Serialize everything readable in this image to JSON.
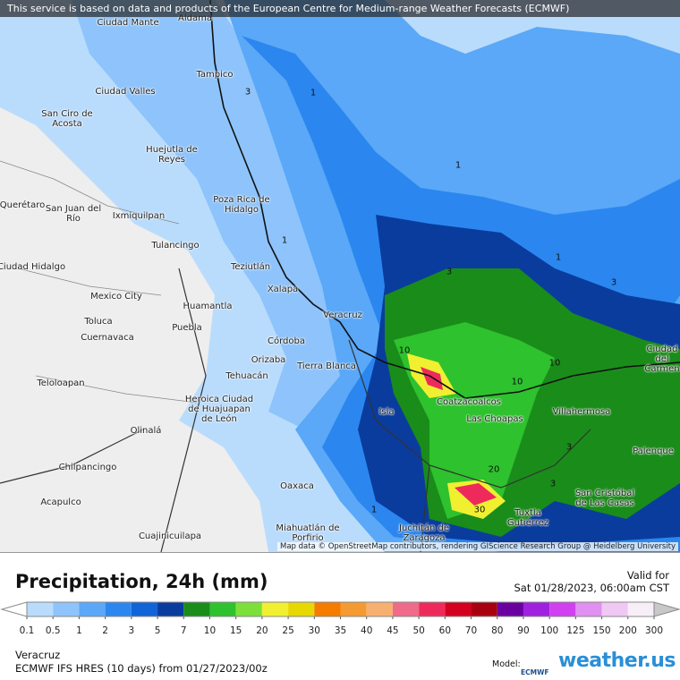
{
  "header": {
    "notice": "This service is based on data and products of the European Centre for Medium-range Weather Forecasts (ECMWF)"
  },
  "map": {
    "places": [
      "Ciudad Mante",
      "Aldama",
      "Tampico",
      "Ciudad Valles",
      "San Ciro de Acosta",
      "Huejutla de Reyes",
      "Poza Rica de Hidalgo",
      "Querétaro",
      "San Juan del Río",
      "Ixmiquilpan",
      "Tulancingo",
      "Ciudad Hidalgo",
      "Teziutlán",
      "Xalapa",
      "Mexico City",
      "Huamantla",
      "Toluca",
      "Puebla",
      "Cuernavaca",
      "Veracruz",
      "Córdoba",
      "Orizaba",
      "Tierra Blanca",
      "Tehuacán",
      "Teloloapan",
      "Heroica Ciudad de Huajuapan de León",
      "Coatzacoalcos",
      "Las Choapas",
      "Villahermosa",
      "Ciudad del Carmen",
      "Isla",
      "Olinalá",
      "Chilpancingo",
      "Palenque",
      "Oaxaca",
      "San Cristóbal de Las Casas",
      "Acapulco",
      "Tuxtla Gutiérrez",
      "Juchitán de Zaragoza",
      "Miahuatlán de Porfirio",
      "Cuajinicuilapa"
    ],
    "contour_labels": [
      1,
      3,
      1,
      3,
      3,
      1,
      10,
      10,
      10,
      20,
      30,
      1,
      3,
      3,
      1
    ],
    "attribution": "Map data © OpenStreetMap contributors, rendering GIScience Research Group @ Heidelberg University"
  },
  "legend": {
    "title": "Precipitation, 24h (mm)",
    "valid_label": "Valid for",
    "valid_time": "Sat 01/28/2023, 06:00am CST",
    "stops": [
      {
        "value": 0.1,
        "color": "#b9dcfd"
      },
      {
        "value": 0.5,
        "color": "#8ec4fb"
      },
      {
        "value": 1,
        "color": "#5aa8f7"
      },
      {
        "value": 2,
        "color": "#2b87ef"
      },
      {
        "value": 3,
        "color": "#1064d8"
      },
      {
        "value": 5,
        "color": "#0a3c9e"
      },
      {
        "value": 7,
        "color": "#1a8c1a"
      },
      {
        "value": 10,
        "color": "#2ec22e"
      },
      {
        "value": 15,
        "color": "#7de03a"
      },
      {
        "value": 20,
        "color": "#f0f030"
      },
      {
        "value": 25,
        "color": "#e6d800"
      },
      {
        "value": 30,
        "color": "#f57c00"
      },
      {
        "value": 35,
        "color": "#f59a30"
      },
      {
        "value": 40,
        "color": "#f8b070"
      },
      {
        "value": 45,
        "color": "#f06a8a"
      },
      {
        "value": 50,
        "color": "#ee2a5c"
      },
      {
        "value": 60,
        "color": "#d40020"
      },
      {
        "value": 70,
        "color": "#a8000f"
      },
      {
        "value": 80,
        "color": "#6a00a0"
      },
      {
        "value": 90,
        "color": "#a020e0"
      },
      {
        "value": 100,
        "color": "#d040f0"
      },
      {
        "value": 125,
        "color": "#e090f0"
      },
      {
        "value": 150,
        "color": "#f0c8f4"
      },
      {
        "value": 200,
        "color": "#f8eef8"
      },
      {
        "value": 300,
        "color": "#c8c8c8"
      }
    ]
  },
  "footer": {
    "location": "Veracruz",
    "model_run": "ECMWF IFS HRES (10 days) from 01/27/2023/00z",
    "model_label": "Model:",
    "model_logo": "ECMWF",
    "brand": "weather.us"
  }
}
